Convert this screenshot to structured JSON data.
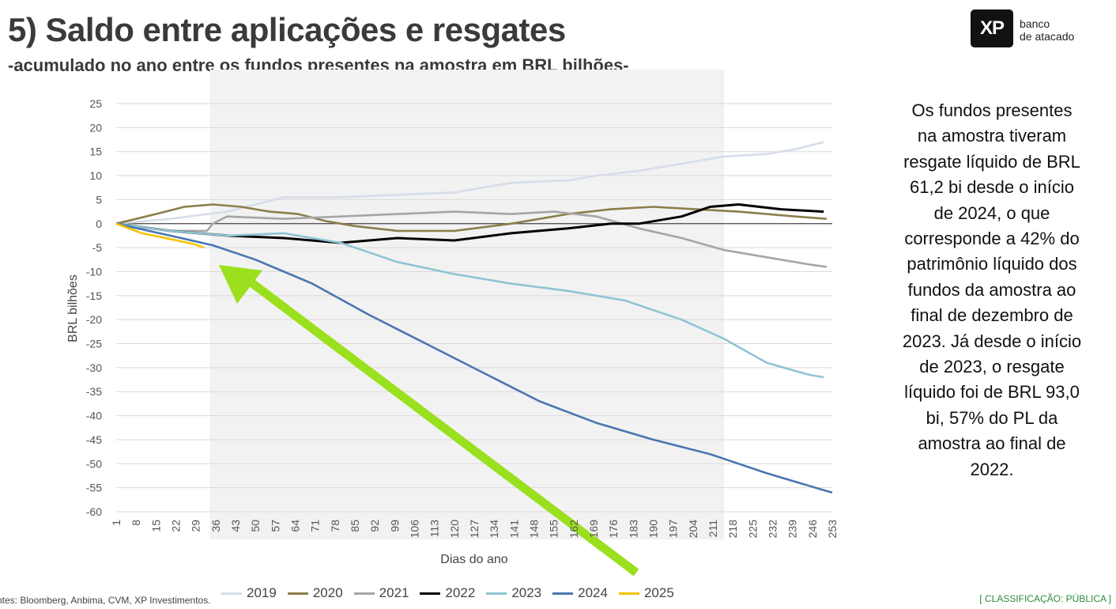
{
  "header": {
    "title": "5) Saldo entre aplicações e resgates",
    "subtitle": "-acumulado no ano entre os fundos presentes na amostra em BRL bilhões-"
  },
  "logo": {
    "mark": "XP",
    "line1": "banco",
    "line2": "de atacado"
  },
  "side_note": "Os fundos presentes na amostra tiveram resgate líquido de BRL 61,2 bi desde o início de 2024, o que corresponde a 42% do patrimônio líquido dos fundos da amostra ao final de dezembro de 2023. Já desde o início de 2023, o resgate líquido foi de BRL 93,0 bi, 57% do PL da amostra ao final de 2022.",
  "footer": {
    "sources": "ntes: Bloomberg, Anbima, CVM, XP Investimentos.",
    "classification": "[ CLASSIFICAÇÃO: PÚBLICA ]"
  },
  "chart_data": {
    "type": "line",
    "xlabel": "Dias do ano",
    "ylabel": "BRL bilhões",
    "xlim": [
      1,
      253
    ],
    "ylim": [
      -60,
      25
    ],
    "x_ticks": [
      1,
      8,
      15,
      22,
      29,
      36,
      43,
      50,
      57,
      64,
      71,
      78,
      85,
      92,
      99,
      106,
      113,
      120,
      127,
      134,
      141,
      148,
      155,
      162,
      169,
      176,
      183,
      190,
      197,
      204,
      211,
      218,
      225,
      232,
      239,
      246,
      253
    ],
    "y_ticks": [
      25,
      20,
      15,
      10,
      5,
      0,
      -5,
      -10,
      -15,
      -20,
      -25,
      -30,
      -35,
      -40,
      -45,
      -50,
      -55,
      -60
    ],
    "grid": true,
    "legend_position": "bottom",
    "shaded_region_x": [
      34,
      215
    ],
    "series": [
      {
        "name": "2019",
        "color": "#d6dde9",
        "x": [
          1,
          20,
          40,
          60,
          80,
          100,
          120,
          140,
          160,
          170,
          185,
          200,
          215,
          230,
          240,
          250
        ],
        "values": [
          0,
          1,
          2.5,
          5.5,
          5.5,
          6,
          6.5,
          8.5,
          9,
          10,
          11,
          12.5,
          14,
          14.5,
          15.5,
          17
        ]
      },
      {
        "name": "2020",
        "color": "#8c7e4a",
        "x": [
          1,
          15,
          25,
          35,
          45,
          55,
          65,
          75,
          85,
          100,
          120,
          140,
          160,
          175,
          190,
          205,
          220,
          240,
          251
        ],
        "values": [
          0,
          2,
          3.5,
          4,
          3.5,
          2.5,
          2,
          0.5,
          -0.5,
          -1.5,
          -1.5,
          0,
          2,
          3,
          3.5,
          3,
          2.5,
          1.5,
          1
        ]
      },
      {
        "name": "2021",
        "color": "#a6a6a6",
        "x": [
          1,
          20,
          33,
          35,
          40,
          60,
          80,
          100,
          120,
          140,
          155,
          170,
          185,
          200,
          215,
          230,
          245,
          251
        ],
        "values": [
          0,
          -1.5,
          -1.5,
          0,
          1.5,
          1,
          1.5,
          2,
          2.5,
          2,
          2.5,
          1.5,
          -1,
          -3,
          -5.5,
          -7,
          -8.5,
          -9
        ]
      },
      {
        "name": "2022",
        "color": "#000000",
        "x": [
          1,
          20,
          40,
          60,
          80,
          100,
          120,
          140,
          160,
          175,
          185,
          200,
          210,
          220,
          235,
          250
        ],
        "values": [
          0,
          -1.5,
          -2.5,
          -3,
          -4,
          -3,
          -3.5,
          -2,
          -1,
          0,
          0,
          1.5,
          3.5,
          4,
          3,
          2.5
        ]
      },
      {
        "name": "2023",
        "color": "#8ec5d3",
        "x": [
          1,
          20,
          40,
          60,
          80,
          100,
          120,
          140,
          160,
          180,
          200,
          215,
          230,
          245,
          250
        ],
        "values": [
          0,
          -1.5,
          -2.5,
          -2,
          -4,
          -8,
          -10.5,
          -12.5,
          -14,
          -16,
          -20,
          -24,
          -29,
          -31.5,
          -32
        ]
      },
      {
        "name": "2024",
        "color": "#4a76b0",
        "x": [
          1,
          20,
          35,
          50,
          70,
          90,
          110,
          130,
          150,
          170,
          190,
          210,
          230,
          250,
          253
        ],
        "values": [
          0,
          -2.5,
          -4.5,
          -7.5,
          -12.5,
          -19,
          -25,
          -31,
          -37,
          -41.5,
          -45,
          -48,
          -52,
          -55.5,
          -56
        ]
      },
      {
        "name": "2025",
        "color": "#f5c400",
        "x": [
          1,
          10,
          20,
          28,
          32
        ],
        "values": [
          0,
          -2,
          -3.2,
          -4.2,
          -5
        ]
      }
    ]
  }
}
